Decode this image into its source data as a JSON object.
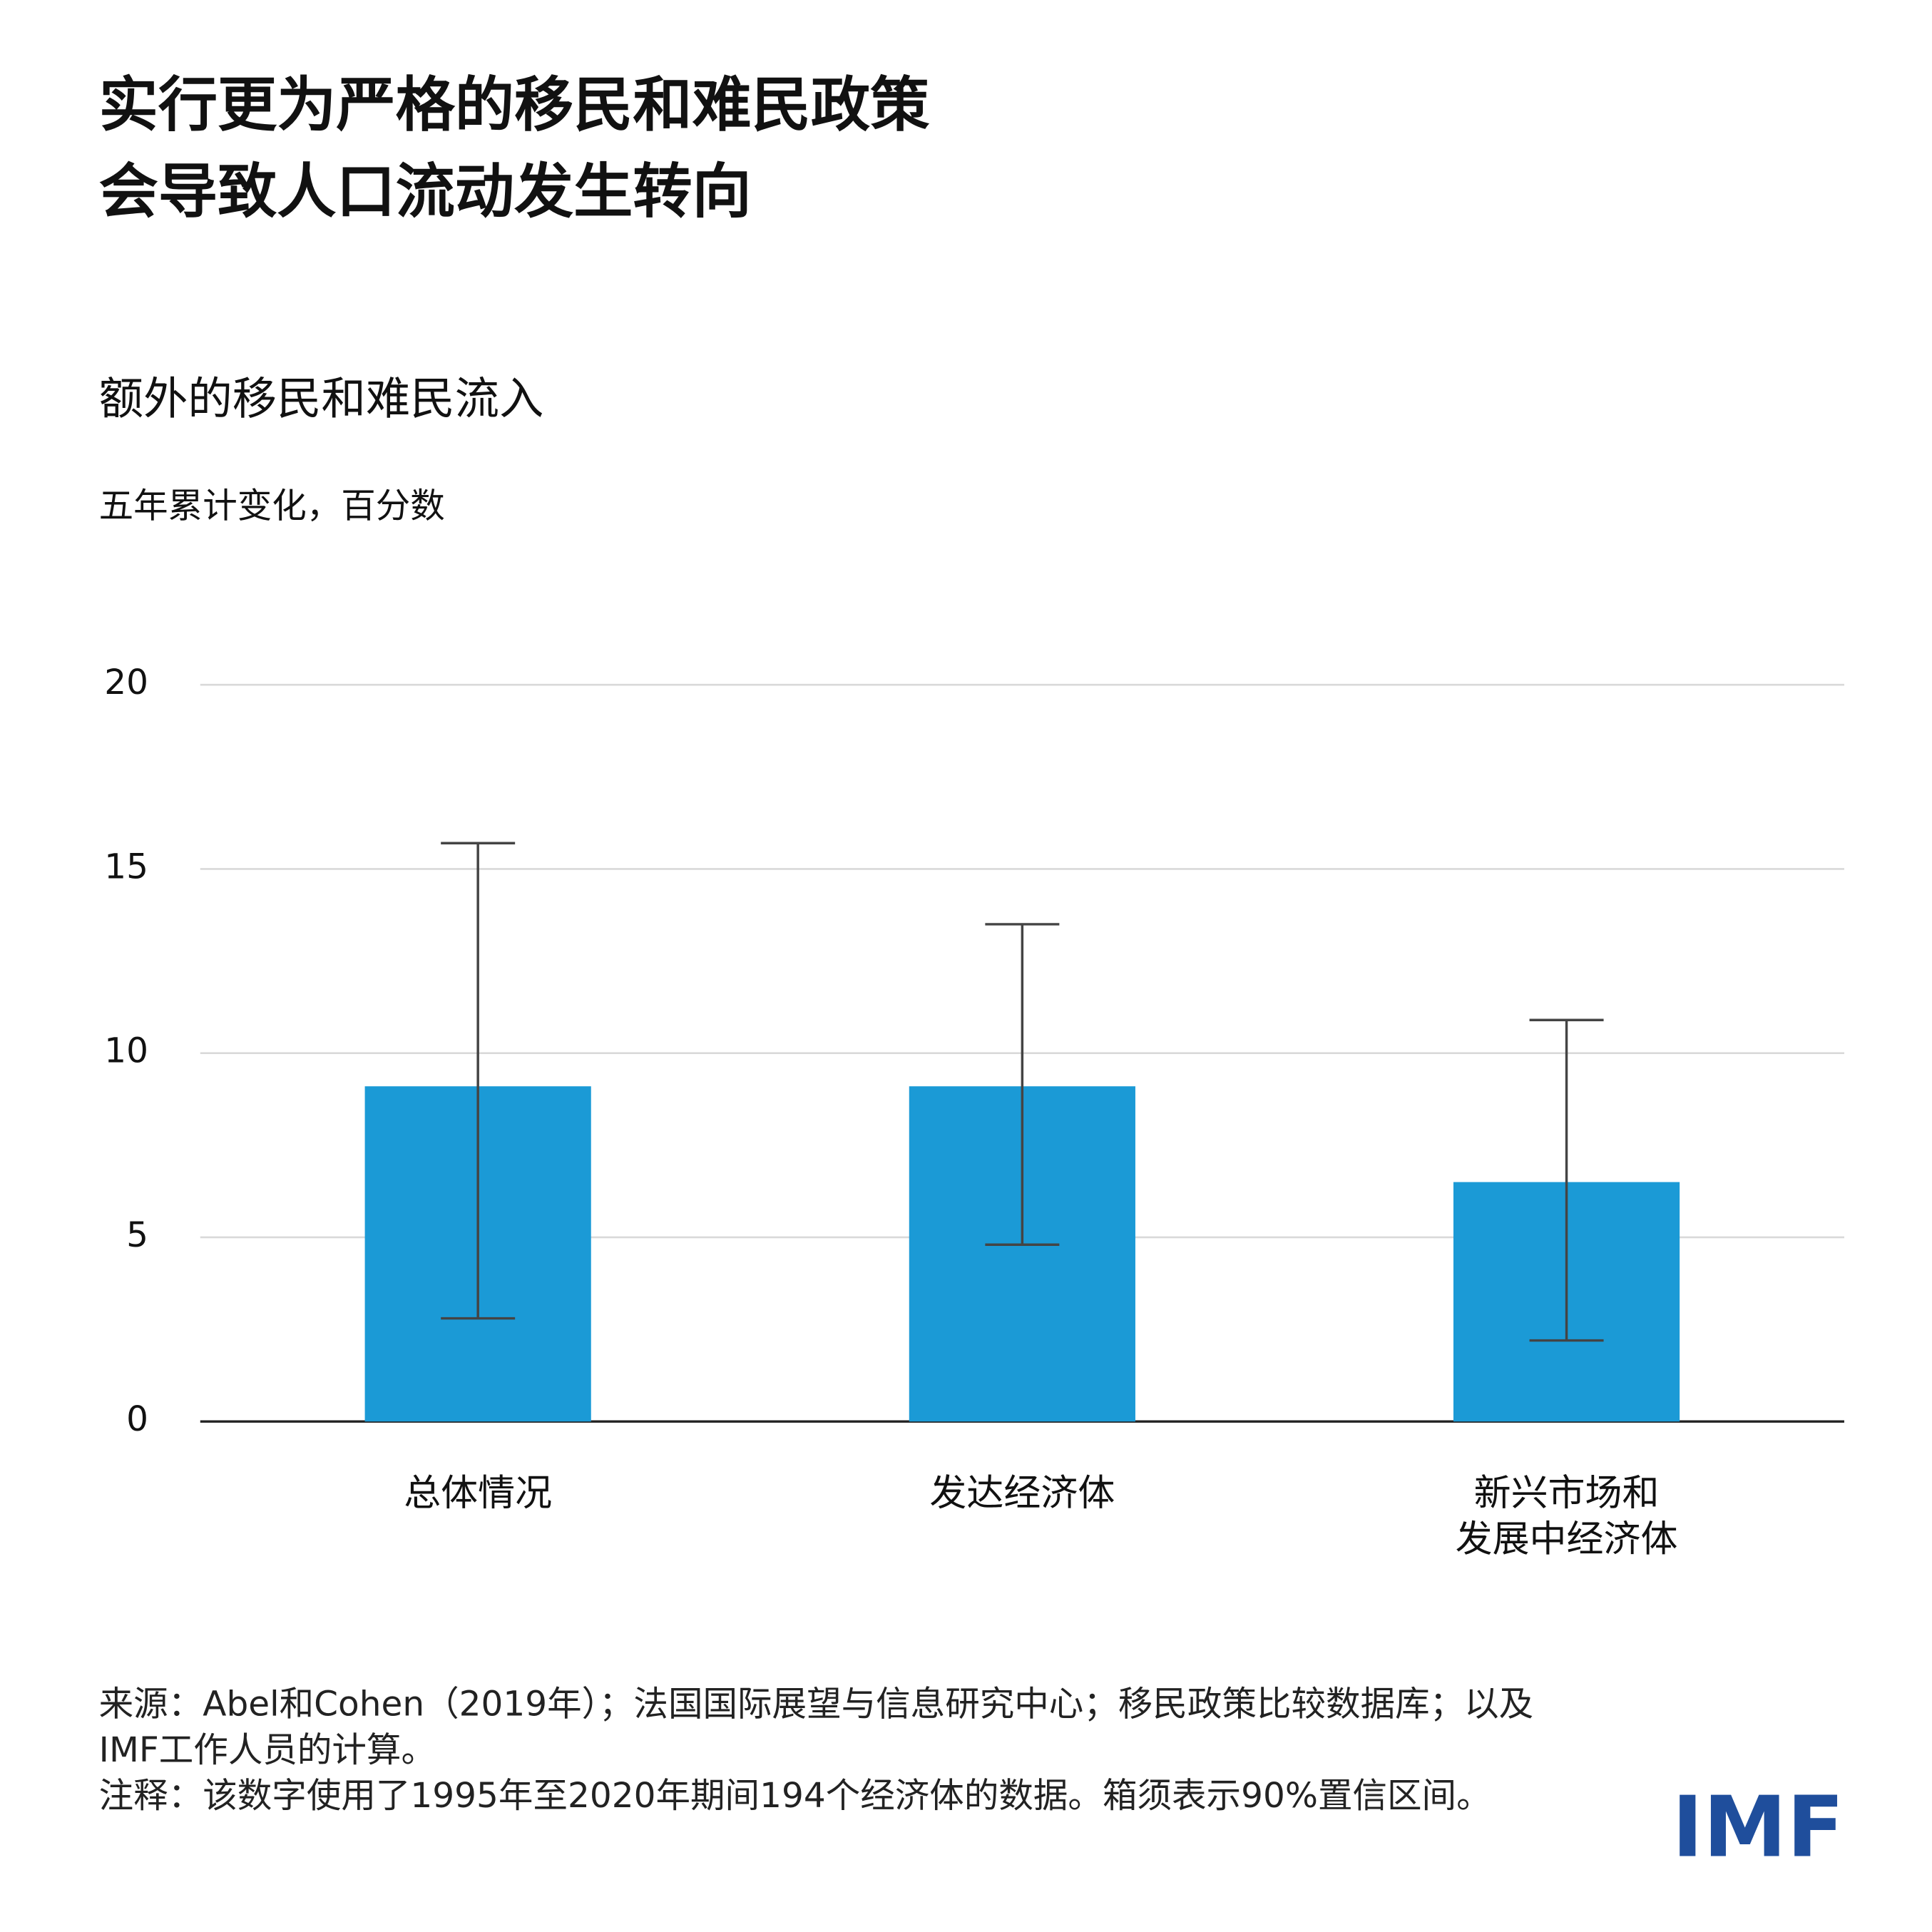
{
  "chart_data": {
    "type": "bar",
    "title": "实行更为严格的移民和难民政策\n会导致人口流动发生转向",
    "subtitle": "额外的移民和难民流入",
    "y_label": "五年累计变化，百分数",
    "categories": [
      "总体情况",
      "发达经济体",
      "新兴市场和\n发展中经济体"
    ],
    "values": [
      9.1,
      9.1,
      6.5
    ],
    "ci_low": [
      2.8,
      4.8,
      2.2
    ],
    "ci_high": [
      15.7,
      13.5,
      10.9
    ],
    "color": "#1b9ad6",
    "ylim": [
      0,
      20
    ],
    "yticks": [
      0,
      5,
      10,
      15,
      20
    ],
    "grid": true,
    "source": "来源：Abel和Cohen（2019年）；法国国际展望与信息研究中心；移民政策比较数据库；以及IMF工作人员的计算。",
    "note": "注释：该数字使用了1995年至2020年期间194个经济体的数据。箱须表示90%置信区间。",
    "logo": "IMF"
  }
}
